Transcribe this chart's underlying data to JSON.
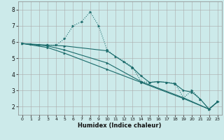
{
  "background_color": "#cceaea",
  "grid_color": "#aaaaaa",
  "line_color": "#1a6b6b",
  "marker_color": "#1a6b6b",
  "xlabel": "Humidex (Indice chaleur)",
  "xlim": [
    -0.5,
    23.5
  ],
  "ylim": [
    1.5,
    8.5
  ],
  "xticks": [
    0,
    1,
    2,
    3,
    4,
    5,
    6,
    7,
    8,
    9,
    10,
    11,
    12,
    13,
    14,
    15,
    16,
    17,
    18,
    19,
    20,
    21,
    22,
    23
  ],
  "yticks": [
    2,
    3,
    4,
    5,
    6,
    7,
    8
  ],
  "series1": [
    [
      0,
      5.9
    ],
    [
      1,
      5.85
    ],
    [
      2,
      5.8
    ],
    [
      3,
      5.8
    ],
    [
      4,
      5.8
    ],
    [
      5,
      6.2
    ],
    [
      6,
      7.0
    ],
    [
      7,
      7.25
    ],
    [
      8,
      7.85
    ],
    [
      9,
      7.0
    ],
    [
      10,
      5.5
    ],
    [
      11,
      5.1
    ],
    [
      12,
      4.8
    ],
    [
      13,
      4.45
    ],
    [
      14,
      3.55
    ],
    [
      15,
      3.5
    ],
    [
      16,
      3.55
    ],
    [
      17,
      3.5
    ],
    [
      18,
      3.45
    ],
    [
      19,
      2.55
    ],
    [
      20,
      3.0
    ],
    [
      21,
      2.45
    ],
    [
      22,
      1.85
    ],
    [
      23,
      2.3
    ]
  ],
  "series2": [
    [
      0,
      5.9
    ],
    [
      3,
      5.8
    ],
    [
      5,
      5.75
    ],
    [
      10,
      5.45
    ],
    [
      13,
      4.4
    ],
    [
      14,
      3.9
    ],
    [
      15,
      3.5
    ],
    [
      16,
      3.55
    ],
    [
      17,
      3.5
    ],
    [
      18,
      3.4
    ],
    [
      19,
      3.0
    ],
    [
      20,
      2.9
    ],
    [
      21,
      2.45
    ],
    [
      22,
      1.85
    ],
    [
      23,
      2.3
    ]
  ],
  "series3": [
    [
      0,
      5.9
    ],
    [
      3,
      5.75
    ],
    [
      5,
      5.5
    ],
    [
      10,
      4.7
    ],
    [
      14,
      3.55
    ],
    [
      19,
      2.55
    ],
    [
      22,
      1.85
    ],
    [
      23,
      2.3
    ]
  ],
  "series4": [
    [
      0,
      5.9
    ],
    [
      3,
      5.65
    ],
    [
      5,
      5.3
    ],
    [
      10,
      4.3
    ],
    [
      14,
      3.5
    ],
    [
      19,
      2.5
    ],
    [
      22,
      1.85
    ],
    [
      23,
      2.3
    ]
  ]
}
